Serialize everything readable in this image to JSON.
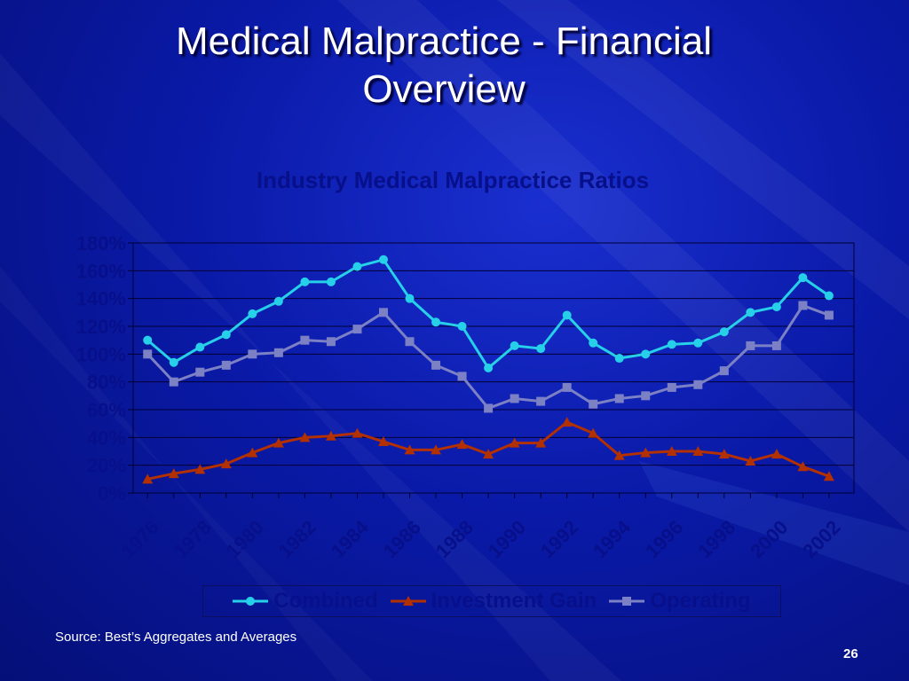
{
  "slide": {
    "title_line1": "Medical Malpractice - Financial",
    "title_line2": "Overview",
    "source": "Source: Best’s Aggregates and Averages",
    "page_number": "26"
  },
  "colors": {
    "combined": "#26d0e8",
    "investment_gain": "#b33000",
    "operating": "#7c80c4",
    "gridline": "#000033",
    "axis_text": "#07108a"
  },
  "chart_data": {
    "type": "line",
    "title": "Industry Medical Malpractice Ratios",
    "xlabel": "",
    "ylabel": "",
    "ylim": [
      0,
      180
    ],
    "y_ticks": [
      "0%",
      "20%",
      "40%",
      "60%",
      "80%",
      "100%",
      "120%",
      "140%",
      "160%",
      "180%"
    ],
    "x_tick_labels": [
      "1976",
      "1978",
      "1980",
      "1982",
      "1984",
      "1986",
      "1988",
      "1990",
      "1992",
      "1994",
      "1996",
      "1998",
      "2000",
      "2002"
    ],
    "x": [
      1976,
      1977,
      1978,
      1979,
      1980,
      1981,
      1982,
      1983,
      1984,
      1985,
      1986,
      1987,
      1988,
      1989,
      1990,
      1991,
      1992,
      1993,
      1994,
      1995,
      1996,
      1997,
      1998,
      1999,
      2000,
      2001,
      2002
    ],
    "grid": true,
    "legend": "bottom",
    "series": [
      {
        "name": "Combined",
        "marker": "circle",
        "values": [
          110,
          94,
          105,
          114,
          129,
          138,
          152,
          152,
          163,
          168,
          140,
          123,
          120,
          90,
          106,
          104,
          128,
          108,
          97,
          100,
          107,
          108,
          116,
          130,
          134,
          155,
          142
        ]
      },
      {
        "name": "Investment Gain",
        "marker": "triangle",
        "values": [
          10,
          14,
          17,
          21,
          29,
          36,
          40,
          41,
          43,
          37,
          31,
          31,
          35,
          28,
          36,
          36,
          51,
          43,
          27,
          29,
          30,
          30,
          28,
          23,
          28,
          19,
          12
        ]
      },
      {
        "name": "Operating",
        "marker": "square",
        "values": [
          100,
          80,
          87,
          92,
          100,
          101,
          110,
          109,
          118,
          130,
          109,
          92,
          84,
          61,
          68,
          66,
          76,
          64,
          68,
          70,
          76,
          78,
          88,
          106,
          106,
          135,
          128
        ]
      }
    ]
  }
}
